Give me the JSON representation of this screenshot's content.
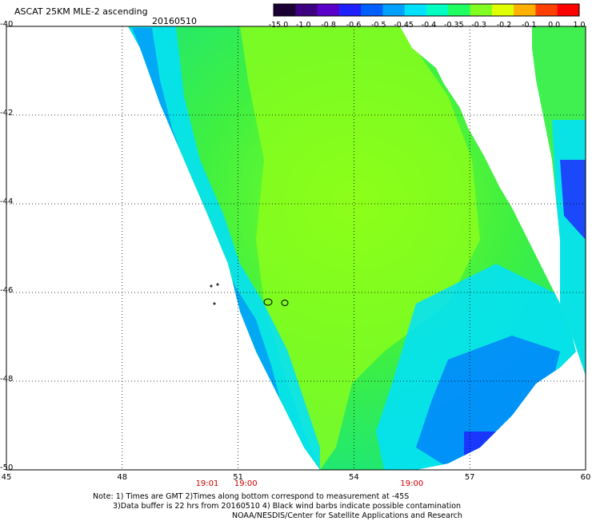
{
  "header": {
    "title": "ASCAT 25KM MLE-2 ascending",
    "date": "20160510"
  },
  "colorbar": {
    "labels": [
      "-15.0",
      "-1.0",
      "-0.8",
      "-0.6",
      "-0.5",
      "-0.45",
      "-0.4",
      "-0.35",
      "-0.3",
      "-0.2",
      "-0.1",
      "0.0",
      "1.0"
    ],
    "colors": [
      "#1a0033",
      "#3c0080",
      "#5a00c8",
      "#2020ff",
      "#0060ff",
      "#00a0ff",
      "#00e0ff",
      "#00ffc0",
      "#20ff60",
      "#80ff20",
      "#e0ff00",
      "#ffb000",
      "#ff4000",
      "#ff0000"
    ]
  },
  "axes": {
    "lat_labels": [
      "-40",
      "-42",
      "-44",
      "-46",
      "-48",
      "-50"
    ],
    "lon_labels": [
      "45",
      "48",
      "51",
      "54",
      "57",
      "60"
    ],
    "time_labels": [
      {
        "text": "19:01",
        "lon": 50.2
      },
      {
        "text": "19:00",
        "lon": 51.2
      },
      {
        "text": "19:00",
        "lon": 55.5
      }
    ]
  },
  "footer": {
    "line1": "Note: 1) Times are GMT 2)Times along bottom correspond to measurement at -45S",
    "line2": "3)Data buffer is 22 hrs from 20160510 4) Black wind barbs indicate possible contamination",
    "line3": "NOAA/NESDIS/Center for Satellite Applications and Research"
  },
  "map_extent": {
    "lon_min": 45,
    "lon_max": 60,
    "lat_min": -50,
    "lat_max": -40
  }
}
